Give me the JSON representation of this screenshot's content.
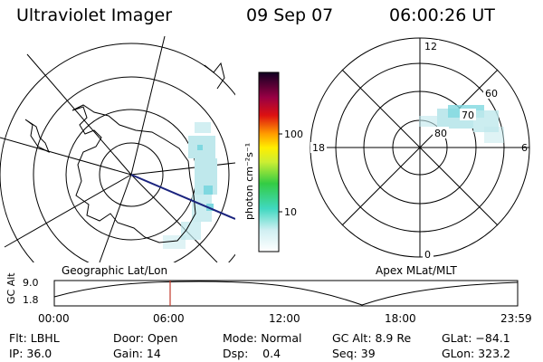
{
  "header": {
    "instrument": "Ultraviolet Imager",
    "date": "09 Sep 07",
    "time": "06:00:26 UT"
  },
  "colorbar": {
    "unit_label": "photon cm⁻²s⁻¹",
    "ticks": [
      "100",
      "10"
    ],
    "scale": "log"
  },
  "left_panel": {
    "caption": "Geographic Lat/Lon"
  },
  "right_panel": {
    "caption": "Apex MLat/MLT",
    "mlt_labels": {
      "top": "12",
      "left": "18",
      "right": "6",
      "bottom": "0"
    },
    "mlat_labels": [
      "60",
      "70",
      "80"
    ]
  },
  "timeline": {
    "axis_label": "GC Alt",
    "y_ticks": [
      "9.0",
      "1.8"
    ],
    "x_ticks": [
      "00:00",
      "06:00",
      "12:00",
      "18:00",
      "23:59"
    ],
    "marker_color": "#c0392b"
  },
  "footer": {
    "rows": [
      [
        "Flt: LBHL",
        "Door: Open",
        "Mode: Normal",
        "GC Alt: 8.9 Re",
        "GLat: −84.1"
      ],
      [
        "IP: 36.0",
        "Gain: 14",
        "Dsp:    0.4",
        "Seq: 39",
        "GLon: 323.2"
      ]
    ]
  }
}
